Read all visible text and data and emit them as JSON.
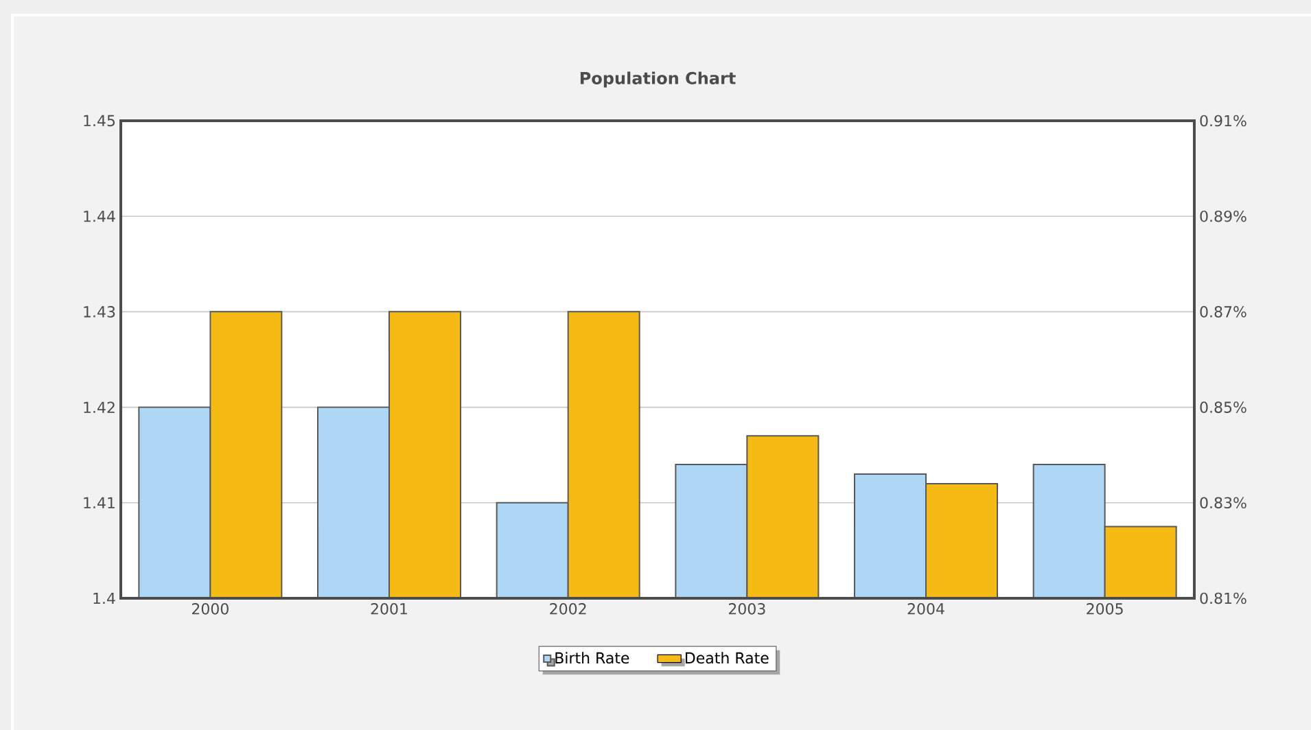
{
  "chart_data": {
    "type": "bar",
    "title": "Population Chart",
    "categories": [
      "2000",
      "2001",
      "2002",
      "2003",
      "2004",
      "2005"
    ],
    "series": [
      {
        "name": "Birth Rate",
        "color": "#aed6f5",
        "values": [
          1.42,
          1.42,
          1.41,
          1.414,
          1.413,
          1.414
        ]
      },
      {
        "name": "Death Rate",
        "color": "#f5bb14",
        "axis": "y2",
        "values": [
          0.87,
          0.87,
          0.87,
          0.844,
          0.834,
          0.825
        ]
      }
    ],
    "ylim": [
      1.4,
      1.45
    ],
    "yticks": [
      1.4,
      1.41,
      1.42,
      1.43,
      1.44,
      1.45
    ],
    "y2lim": [
      0.81,
      0.91
    ],
    "y2ticks": [
      {
        "value": 0.81,
        "label": "0.81%"
      },
      {
        "value": 0.83,
        "label": "0.83%"
      },
      {
        "value": 0.85,
        "label": "0.85%"
      },
      {
        "value": 0.87,
        "label": "0.87%"
      },
      {
        "value": 0.89,
        "label": "0.89%"
      },
      {
        "value": 0.91,
        "label": "0.91%"
      }
    ],
    "grid": "y",
    "legend": "bottom"
  }
}
